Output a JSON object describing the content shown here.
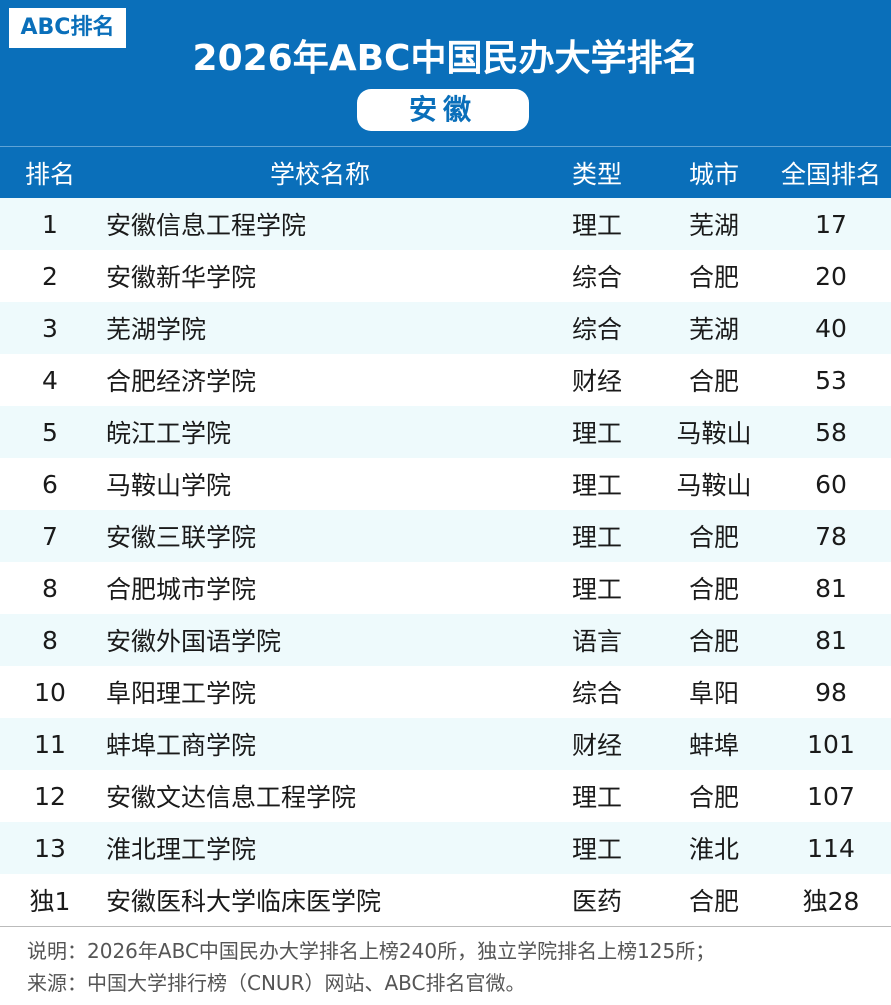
{
  "header": {
    "logo": "ABC排名",
    "title": "2026年ABC中国民办大学排名",
    "region": "安徽"
  },
  "table": {
    "columns": [
      "排名",
      "学校名称",
      "类型",
      "城市",
      "全国排名"
    ],
    "rows": [
      [
        "1",
        "安徽信息工程学院",
        "理工",
        "芜湖",
        "17"
      ],
      [
        "2",
        "安徽新华学院",
        "综合",
        "合肥",
        "20"
      ],
      [
        "3",
        "芜湖学院",
        "综合",
        "芜湖",
        "40"
      ],
      [
        "4",
        "合肥经济学院",
        "财经",
        "合肥",
        "53"
      ],
      [
        "5",
        "皖江工学院",
        "理工",
        "马鞍山",
        "58"
      ],
      [
        "6",
        "马鞍山学院",
        "理工",
        "马鞍山",
        "60"
      ],
      [
        "7",
        "安徽三联学院",
        "理工",
        "合肥",
        "78"
      ],
      [
        "8",
        "合肥城市学院",
        "理工",
        "合肥",
        "81"
      ],
      [
        "8",
        "安徽外国语学院",
        "语言",
        "合肥",
        "81"
      ],
      [
        "10",
        "阜阳理工学院",
        "综合",
        "阜阳",
        "98"
      ],
      [
        "11",
        "蚌埠工商学院",
        "财经",
        "蚌埠",
        "101"
      ],
      [
        "12",
        "安徽文达信息工程学院",
        "理工",
        "合肥",
        "107"
      ],
      [
        "13",
        "淮北理工学院",
        "理工",
        "淮北",
        "114"
      ],
      [
        "独1",
        "安徽医科大学临床医学院",
        "医药",
        "合肥",
        "独28"
      ]
    ]
  },
  "footer": {
    "note": "说明：2026年ABC中国民办大学排名上榜240所，独立学院排名上榜125所；",
    "source": "来源：中国大学排行榜（CNUR）网站、ABC排名官微。"
  },
  "colors": {
    "header_blue": "#0a6fba",
    "row_stripe": "#eefafc"
  }
}
